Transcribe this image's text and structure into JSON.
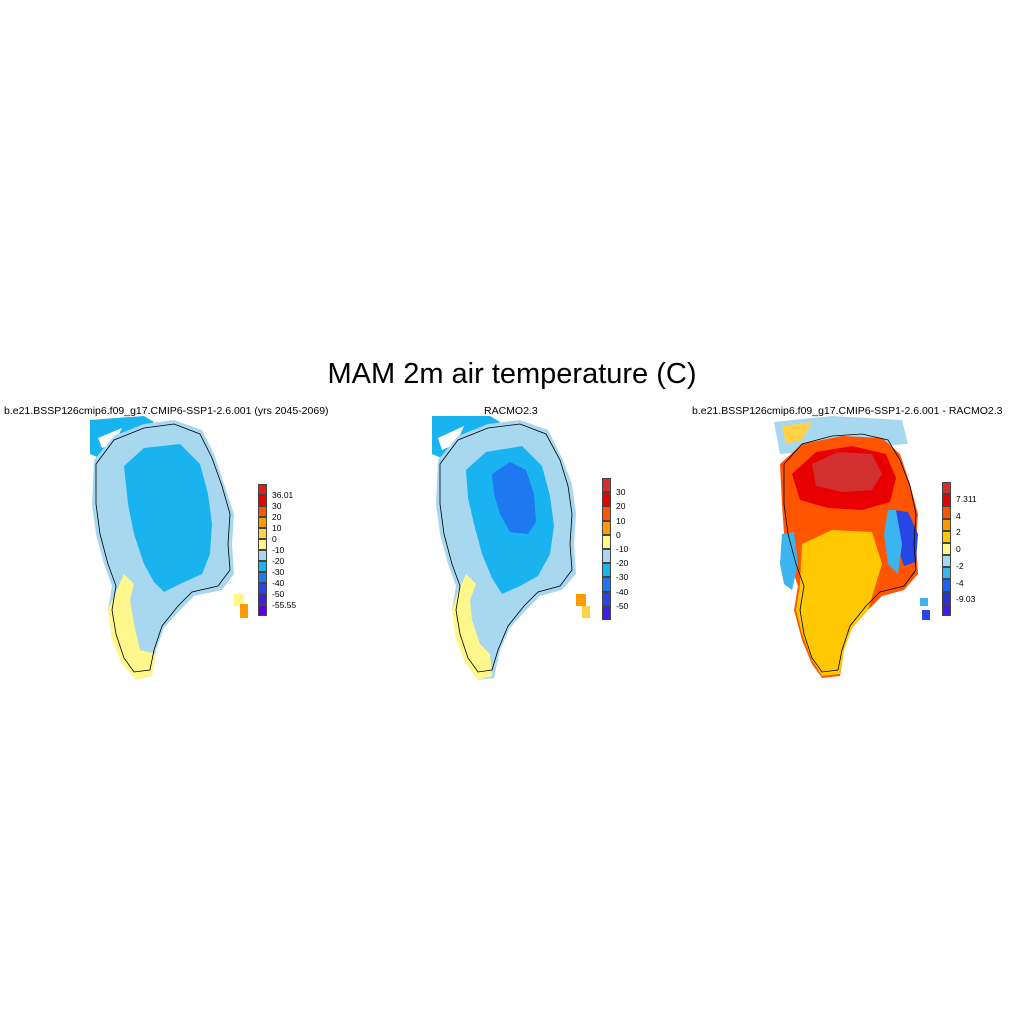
{
  "figure": {
    "title": "MAM 2m air temperature (C)"
  },
  "panels": [
    {
      "id": "model",
      "title": "b.e21.BSSP126cmip6.f09_g17.CMIP6-SSP1-2.6.001 (yrs 2045-2069)",
      "colorbar": {
        "labels": [
          "36.01",
          "30",
          "20",
          "10",
          "0",
          "-10",
          "-20",
          "-30",
          "-40",
          "-50",
          "-55.55"
        ],
        "colors": [
          "#d92121",
          "#e80000",
          "#ff5500",
          "#ff9a00",
          "#ffd24a",
          "#fff68c",
          "#a8d8f0",
          "#19b4f0",
          "#1e78f0",
          "#2846e6",
          "#3c1ee6",
          "#5a00e6"
        ]
      }
    },
    {
      "id": "obs",
      "title": "RACMO2.3",
      "colorbar": {
        "labels": [
          "30",
          "20",
          "10",
          "0",
          "-10",
          "-20",
          "-30",
          "-40",
          "-50"
        ],
        "colors": [
          "#d23030",
          "#e80000",
          "#ff5500",
          "#ff9a00",
          "#fff68c",
          "#a8d8f0",
          "#19b4f0",
          "#1e78f0",
          "#2846e6",
          "#3c1ee6"
        ]
      }
    },
    {
      "id": "diff",
      "title": "b.e21.BSSP126cmip6.f09_g17.CMIP6-SSP1-2.6.001 - RACMO2.3",
      "colorbar": {
        "labels": [
          "7.311",
          "4",
          "2",
          "0",
          "-2",
          "-4",
          "-9.03"
        ],
        "colors": [
          "#d23030",
          "#e80000",
          "#ff5500",
          "#ff9a00",
          "#ffc800",
          "#fff68c",
          "#a8d8f0",
          "#3cb4f0",
          "#1e64f0",
          "#2832d2",
          "#3c1ee6"
        ]
      }
    }
  ]
}
